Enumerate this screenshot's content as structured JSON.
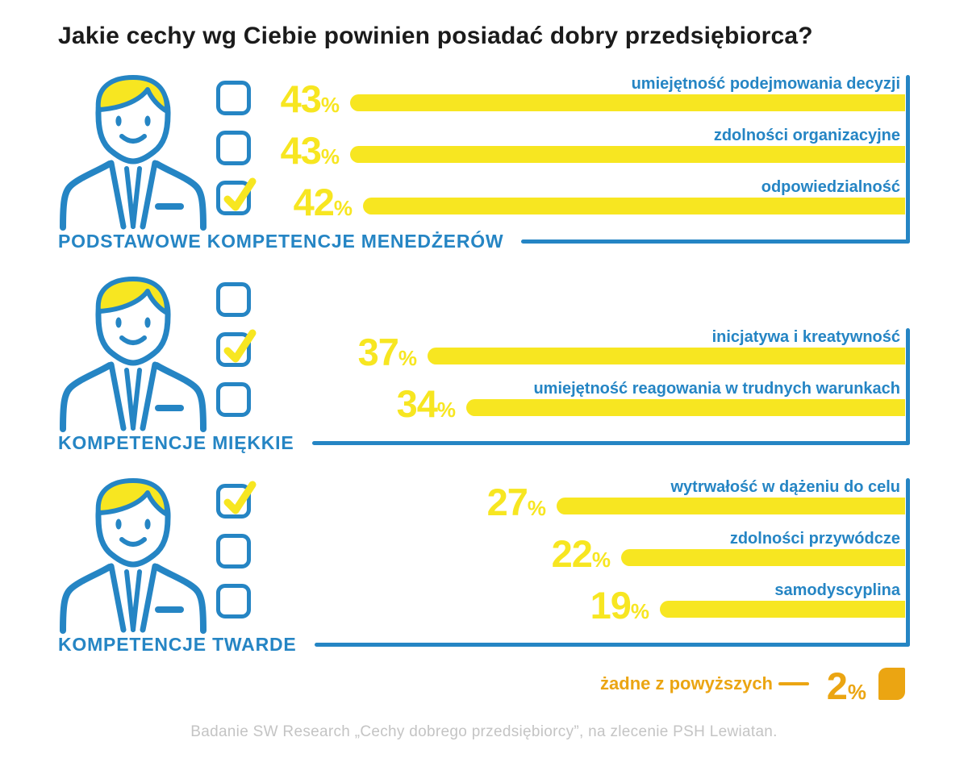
{
  "title": "Jakie cechy wg Ciebie powinien posiadać dobry przedsiębiorca?",
  "footer": "Badanie SW Research „Cechy dobrego przedsiębiorcy”, na zlecenie PSH Lewiatan.",
  "colors": {
    "blue": "#2585C4",
    "yellow": "#F7E621",
    "orange": "#EBA512",
    "title_black": "#1B1B1B",
    "footer_gray": "#C4C4C4"
  },
  "icons": {
    "person": "businessman-avatar-icon",
    "checkbox": "checkbox-icon",
    "check": "check-icon"
  },
  "chart_data": {
    "type": "bar",
    "orientation": "horizontal-right-aligned",
    "title": "Jakie cechy wg Ciebie powinien posiadać dobry przedsiębiorca?",
    "unit": "%",
    "xlim": [
      0,
      43
    ],
    "legend_position": "none",
    "grid": false,
    "sections": [
      {
        "label": "PODSTAWOWE KOMPETENCJE MENEDŻERÓW",
        "checked_index": 2,
        "items": [
          {
            "label": "umiejętność podejmowania decyzji",
            "value": 43
          },
          {
            "label": "zdolności organizacyjne",
            "value": 43
          },
          {
            "label": "odpowiedzialność",
            "value": 42
          }
        ]
      },
      {
        "label": "KOMPETENCJE MIĘKKIE",
        "checked_index": 1,
        "items": [
          {
            "label": "inicjatywa i kreatywność",
            "value": 37
          },
          {
            "label": "umiejętność reagowania w trudnych warunkach",
            "value": 34
          }
        ]
      },
      {
        "label": "KOMPETENCJE TWARDE",
        "checked_index": 0,
        "items": [
          {
            "label": "wytrwałość w dążeniu do celu",
            "value": 27
          },
          {
            "label": "zdolności przywódcze",
            "value": 22
          },
          {
            "label": "samodyscyplina",
            "value": 19
          }
        ]
      }
    ],
    "other": {
      "label": "żadne z powyższych",
      "value": 2
    }
  }
}
